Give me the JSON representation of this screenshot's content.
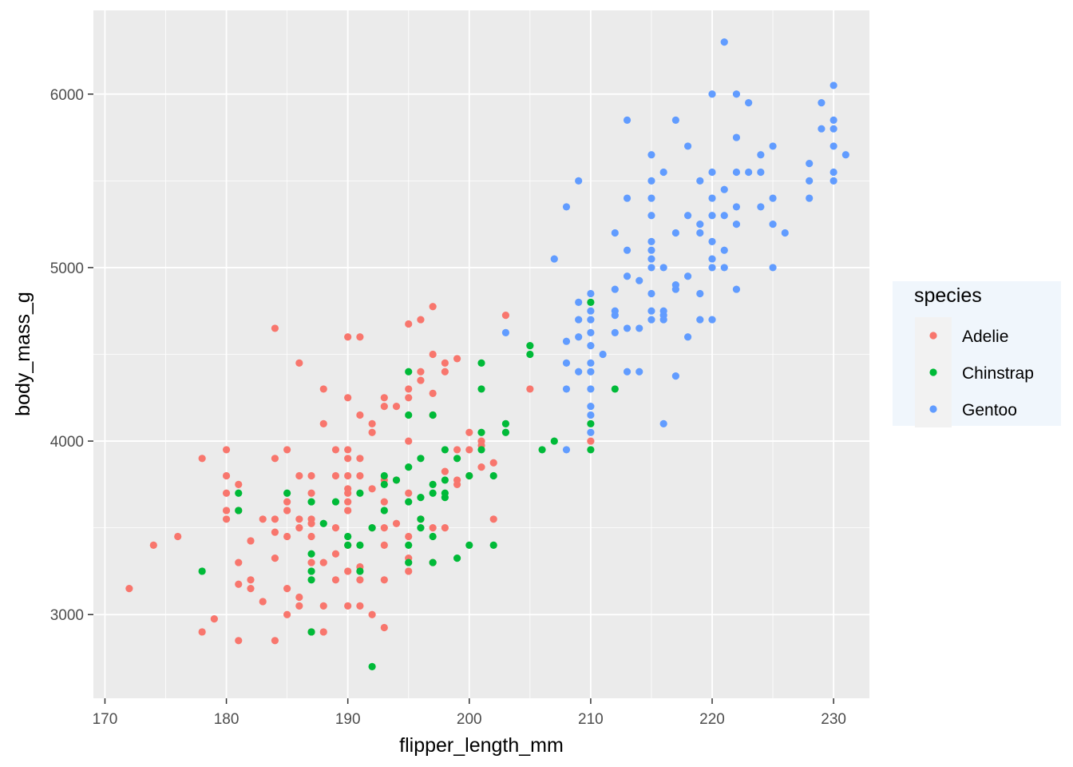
{
  "chart_data": {
    "type": "scatter",
    "title": "",
    "xlabel": "flipper_length_mm",
    "ylabel": "body_mass_g",
    "xlim": [
      169.05,
      232.95
    ],
    "ylim": [
      2517.5,
      6482.5
    ],
    "x_ticks": [
      170,
      180,
      190,
      200,
      210,
      220,
      230
    ],
    "y_ticks": [
      3000,
      4000,
      5000,
      6000
    ],
    "x_tick_labels": [
      "170",
      "180",
      "190",
      "200",
      "210",
      "220",
      "230"
    ],
    "y_tick_labels": [
      "3000",
      "4000",
      "5000",
      "6000"
    ],
    "grid": true,
    "legend": {
      "title": "species",
      "position": "right"
    },
    "series": [
      {
        "name": "Adelie",
        "color": "#F8766D",
        "points": [
          [
            172,
            3150
          ],
          [
            174,
            3400
          ],
          [
            176,
            3450
          ],
          [
            178,
            2900
          ],
          [
            178,
            3900
          ],
          [
            179,
            2975
          ],
          [
            180,
            3550
          ],
          [
            180,
            3600
          ],
          [
            180,
            3700
          ],
          [
            180,
            3800
          ],
          [
            180,
            3950
          ],
          [
            181,
            2850
          ],
          [
            181,
            3175
          ],
          [
            181,
            3300
          ],
          [
            181,
            3600
          ],
          [
            181,
            3750
          ],
          [
            182,
            3200
          ],
          [
            182,
            3425
          ],
          [
            182,
            3150
          ],
          [
            183,
            3075
          ],
          [
            183,
            3550
          ],
          [
            184,
            2850
          ],
          [
            184,
            3325
          ],
          [
            184,
            3475
          ],
          [
            184,
            3550
          ],
          [
            184,
            3900
          ],
          [
            184,
            4650
          ],
          [
            185,
            3000
          ],
          [
            185,
            3150
          ],
          [
            185,
            3450
          ],
          [
            185,
            3600
          ],
          [
            185,
            3650
          ],
          [
            185,
            3950
          ],
          [
            186,
            3050
          ],
          [
            186,
            3100
          ],
          [
            186,
            3500
          ],
          [
            186,
            3550
          ],
          [
            186,
            3800
          ],
          [
            186,
            4450
          ],
          [
            187,
            2900
          ],
          [
            187,
            3300
          ],
          [
            187,
            3450
          ],
          [
            187,
            3525
          ],
          [
            187,
            3550
          ],
          [
            187,
            3700
          ],
          [
            187,
            3800
          ],
          [
            188,
            2900
          ],
          [
            188,
            3050
          ],
          [
            188,
            3300
          ],
          [
            188,
            4100
          ],
          [
            188,
            4300
          ],
          [
            189,
            3200
          ],
          [
            189,
            3350
          ],
          [
            189,
            3500
          ],
          [
            189,
            3800
          ],
          [
            189,
            3950
          ],
          [
            190,
            3050
          ],
          [
            190,
            3250
          ],
          [
            190,
            3400
          ],
          [
            190,
            3600
          ],
          [
            190,
            3650
          ],
          [
            190,
            3700
          ],
          [
            190,
            3725
          ],
          [
            190,
            3800
          ],
          [
            190,
            3900
          ],
          [
            190,
            3950
          ],
          [
            190,
            4250
          ],
          [
            190,
            4600
          ],
          [
            191,
            3050
          ],
          [
            191,
            3200
          ],
          [
            191,
            3275
          ],
          [
            191,
            3800
          ],
          [
            191,
            3900
          ],
          [
            191,
            4150
          ],
          [
            191,
            4600
          ],
          [
            192,
            3000
          ],
          [
            192,
            3500
          ],
          [
            192,
            3725
          ],
          [
            192,
            4050
          ],
          [
            192,
            4100
          ],
          [
            193,
            2925
          ],
          [
            193,
            3200
          ],
          [
            193,
            3400
          ],
          [
            193,
            3500
          ],
          [
            193,
            3650
          ],
          [
            193,
            3775
          ],
          [
            193,
            4200
          ],
          [
            193,
            4250
          ],
          [
            194,
            3525
          ],
          [
            194,
            3775
          ],
          [
            194,
            4200
          ],
          [
            195,
            3250
          ],
          [
            195,
            3325
          ],
          [
            195,
            3450
          ],
          [
            195,
            3700
          ],
          [
            195,
            4000
          ],
          [
            195,
            4250
          ],
          [
            195,
            4300
          ],
          [
            195,
            4675
          ],
          [
            196,
            3550
          ],
          [
            196,
            4350
          ],
          [
            196,
            4400
          ],
          [
            196,
            4700
          ],
          [
            197,
            3300
          ],
          [
            197,
            3500
          ],
          [
            197,
            4150
          ],
          [
            197,
            4275
          ],
          [
            197,
            4500
          ],
          [
            197,
            4775
          ],
          [
            198,
            3500
          ],
          [
            198,
            3825
          ],
          [
            198,
            4400
          ],
          [
            198,
            4450
          ],
          [
            199,
            3750
          ],
          [
            199,
            3775
          ],
          [
            199,
            3950
          ],
          [
            199,
            4475
          ],
          [
            200,
            3800
          ],
          [
            200,
            3950
          ],
          [
            200,
            4050
          ],
          [
            201,
            3850
          ],
          [
            201,
            3975
          ],
          [
            201,
            4000
          ],
          [
            202,
            3550
          ],
          [
            202,
            3875
          ],
          [
            203,
            4725
          ],
          [
            205,
            4300
          ],
          [
            210,
            4000
          ]
        ]
      },
      {
        "name": "Chinstrap",
        "color": "#00BA38",
        "points": [
          [
            178,
            3250
          ],
          [
            181,
            3600
          ],
          [
            181,
            3700
          ],
          [
            185,
            3700
          ],
          [
            187,
            2900
          ],
          [
            187,
            3200
          ],
          [
            187,
            3250
          ],
          [
            187,
            3350
          ],
          [
            187,
            3650
          ],
          [
            188,
            3525
          ],
          [
            189,
            3650
          ],
          [
            190,
            3400
          ],
          [
            190,
            3450
          ],
          [
            191,
            3250
          ],
          [
            191,
            3400
          ],
          [
            191,
            3700
          ],
          [
            192,
            2700
          ],
          [
            192,
            3500
          ],
          [
            193,
            3600
          ],
          [
            193,
            3750
          ],
          [
            193,
            3800
          ],
          [
            194,
            3775
          ],
          [
            195,
            3300
          ],
          [
            195,
            3400
          ],
          [
            195,
            3650
          ],
          [
            195,
            3850
          ],
          [
            195,
            4150
          ],
          [
            195,
            4400
          ],
          [
            196,
            3500
          ],
          [
            196,
            3550
          ],
          [
            196,
            3675
          ],
          [
            196,
            3900
          ],
          [
            197,
            3300
          ],
          [
            197,
            3450
          ],
          [
            197,
            3700
          ],
          [
            197,
            3750
          ],
          [
            197,
            4150
          ],
          [
            198,
            3675
          ],
          [
            198,
            3700
          ],
          [
            198,
            3775
          ],
          [
            198,
            3950
          ],
          [
            199,
            3325
          ],
          [
            199,
            3900
          ],
          [
            200,
            3400
          ],
          [
            200,
            3800
          ],
          [
            201,
            3950
          ],
          [
            201,
            4050
          ],
          [
            201,
            4300
          ],
          [
            201,
            4450
          ],
          [
            202,
            3400
          ],
          [
            202,
            3800
          ],
          [
            203,
            4050
          ],
          [
            203,
            4100
          ],
          [
            205,
            4500
          ],
          [
            205,
            4550
          ],
          [
            206,
            3950
          ],
          [
            207,
            4000
          ],
          [
            210,
            3950
          ],
          [
            210,
            4100
          ],
          [
            210,
            4800
          ],
          [
            212,
            4300
          ]
        ]
      },
      {
        "name": "Gentoo",
        "color": "#619CFF",
        "points": [
          [
            203,
            4625
          ],
          [
            207,
            5050
          ],
          [
            208,
            3950
          ],
          [
            208,
            4300
          ],
          [
            208,
            4450
          ],
          [
            208,
            4575
          ],
          [
            208,
            5350
          ],
          [
            209,
            4400
          ],
          [
            209,
            4600
          ],
          [
            209,
            4700
          ],
          [
            209,
            4800
          ],
          [
            209,
            5500
          ],
          [
            210,
            4050
          ],
          [
            210,
            4150
          ],
          [
            210,
            4200
          ],
          [
            210,
            4300
          ],
          [
            210,
            4400
          ],
          [
            210,
            4450
          ],
          [
            210,
            4550
          ],
          [
            210,
            4625
          ],
          [
            210,
            4700
          ],
          [
            210,
            4750
          ],
          [
            210,
            4850
          ],
          [
            211,
            4500
          ],
          [
            212,
            4625
          ],
          [
            212,
            4725
          ],
          [
            212,
            4750
          ],
          [
            212,
            4875
          ],
          [
            212,
            5200
          ],
          [
            213,
            4400
          ],
          [
            213,
            4650
          ],
          [
            213,
            4950
          ],
          [
            213,
            5100
          ],
          [
            213,
            5400
          ],
          [
            213,
            5850
          ],
          [
            214,
            4400
          ],
          [
            214,
            4650
          ],
          [
            214,
            4925
          ],
          [
            215,
            4700
          ],
          [
            215,
            4750
          ],
          [
            215,
            4850
          ],
          [
            215,
            5000
          ],
          [
            215,
            5050
          ],
          [
            215,
            5100
          ],
          [
            215,
            5150
          ],
          [
            215,
            5300
          ],
          [
            215,
            5400
          ],
          [
            215,
            5500
          ],
          [
            215,
            5650
          ],
          [
            216,
            4100
          ],
          [
            216,
            4700
          ],
          [
            216,
            4725
          ],
          [
            216,
            4750
          ],
          [
            216,
            5000
          ],
          [
            216,
            5550
          ],
          [
            217,
            4375
          ],
          [
            217,
            4875
          ],
          [
            217,
            4900
          ],
          [
            217,
            5200
          ],
          [
            217,
            5850
          ],
          [
            218,
            4600
          ],
          [
            218,
            4950
          ],
          [
            218,
            5300
          ],
          [
            218,
            5700
          ],
          [
            219,
            4700
          ],
          [
            219,
            4850
          ],
          [
            219,
            5200
          ],
          [
            219,
            5250
          ],
          [
            219,
            5500
          ],
          [
            220,
            4700
          ],
          [
            220,
            5000
          ],
          [
            220,
            5050
          ],
          [
            220,
            5150
          ],
          [
            220,
            5300
          ],
          [
            220,
            5400
          ],
          [
            220,
            5550
          ],
          [
            220,
            6000
          ],
          [
            221,
            5000
          ],
          [
            221,
            5100
          ],
          [
            221,
            5300
          ],
          [
            221,
            5450
          ],
          [
            221,
            6300
          ],
          [
            222,
            4875
          ],
          [
            222,
            5250
          ],
          [
            222,
            5350
          ],
          [
            222,
            5550
          ],
          [
            222,
            5750
          ],
          [
            222,
            6000
          ],
          [
            223,
            5550
          ],
          [
            223,
            5950
          ],
          [
            224,
            5350
          ],
          [
            224,
            5550
          ],
          [
            224,
            5650
          ],
          [
            225,
            5000
          ],
          [
            225,
            5250
          ],
          [
            225,
            5400
          ],
          [
            225,
            5700
          ],
          [
            226,
            5200
          ],
          [
            228,
            5400
          ],
          [
            228,
            5500
          ],
          [
            228,
            5600
          ],
          [
            229,
            5800
          ],
          [
            229,
            5950
          ],
          [
            230,
            5500
          ],
          [
            230,
            5550
          ],
          [
            230,
            5700
          ],
          [
            230,
            5800
          ],
          [
            230,
            5850
          ],
          [
            230,
            6050
          ],
          [
            231,
            5650
          ]
        ]
      }
    ]
  },
  "colors": {
    "panel_background": "#EBEBEB",
    "grid_major": "#FFFFFF",
    "legend_background": "#F0F6FC"
  }
}
